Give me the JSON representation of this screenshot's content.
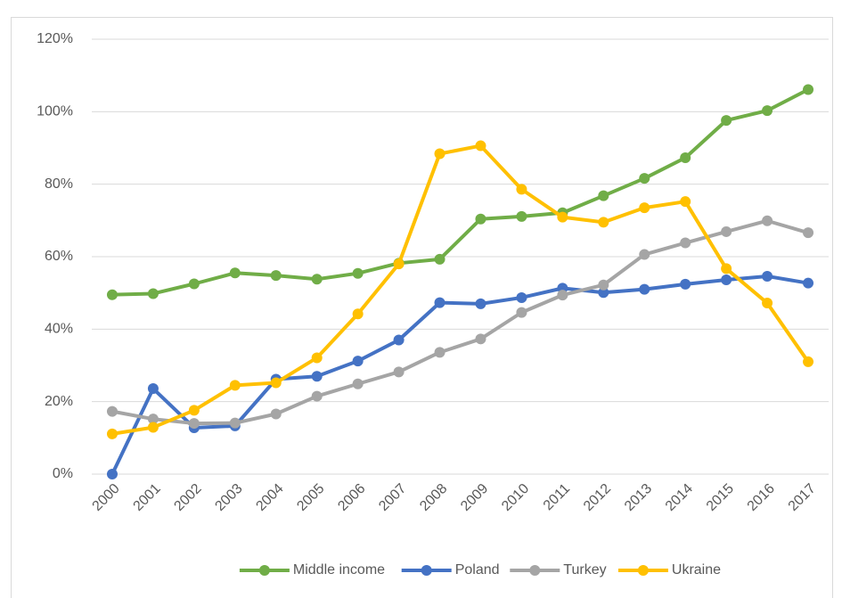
{
  "chart_data": {
    "type": "line",
    "categories": [
      "2000",
      "2001",
      "2002",
      "2003",
      "2004",
      "2005",
      "2006",
      "2007",
      "2008",
      "2009",
      "2010",
      "2011",
      "2012",
      "2013",
      "2014",
      "2015",
      "2016",
      "2017"
    ],
    "series": [
      {
        "name": "Middle income",
        "color": "#70ad47",
        "values": [
          49.5,
          49.8,
          52.5,
          55.5,
          54.8,
          53.8,
          55.4,
          58.2,
          59.3,
          70.4,
          71.1,
          72.1,
          76.8,
          81.6,
          87.3,
          97.6,
          100.3,
          106.1
        ]
      },
      {
        "name": "Poland",
        "color": "#4472c4",
        "values": [
          0,
          23.6,
          12.8,
          13.3,
          26.2,
          27.0,
          31.2,
          37.0,
          47.3,
          47.0,
          48.7,
          51.3,
          50.1,
          51.0,
          52.4,
          53.6,
          54.6,
          52.7
        ]
      },
      {
        "name": "Turkey",
        "color": "#a5a5a5",
        "values": [
          17.3,
          15.2,
          14.0,
          14.1,
          16.6,
          21.5,
          24.9,
          28.2,
          33.6,
          37.3,
          44.6,
          49.4,
          52.2,
          60.6,
          63.8,
          66.9,
          69.9,
          66.6
        ]
      },
      {
        "name": "Ukraine",
        "color": "#ffc000",
        "values": [
          11.1,
          12.9,
          17.6,
          24.5,
          25.2,
          32.1,
          44.2,
          58.0,
          88.4,
          90.6,
          78.6,
          70.9,
          69.5,
          73.5,
          75.2,
          56.7,
          47.2,
          31.0
        ]
      }
    ],
    "ylim": [
      0,
      120
    ],
    "yticks": [
      {
        "value": 0,
        "label": "0%"
      },
      {
        "value": 20,
        "label": "20%"
      },
      {
        "value": 40,
        "label": "40%"
      },
      {
        "value": 60,
        "label": "60%"
      },
      {
        "value": 80,
        "label": "80%"
      },
      {
        "value": 100,
        "label": "100%"
      },
      {
        "value": 120,
        "label": "120%"
      }
    ],
    "grid": true,
    "legend": "bottom"
  }
}
